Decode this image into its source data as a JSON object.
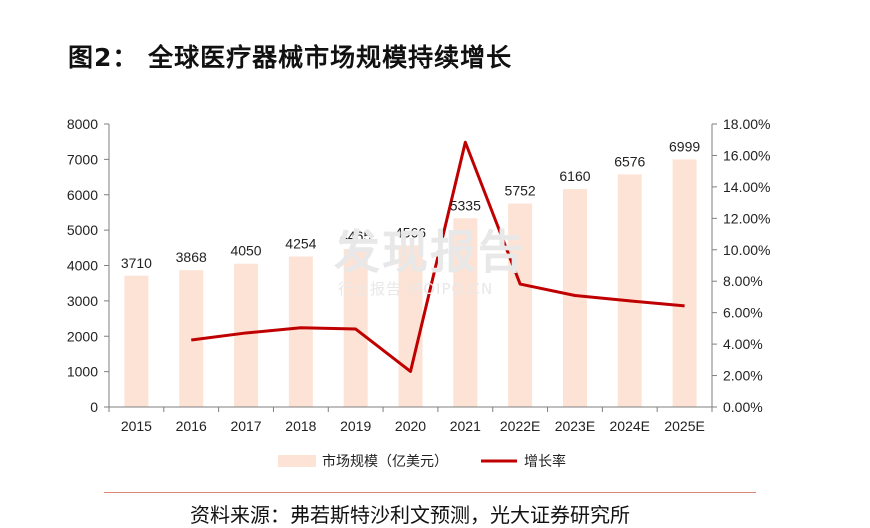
{
  "title": "图2： 全球医疗器械市场规模持续增长",
  "source": "资料来源：弗若斯特沙利文预测，光大证券研究所",
  "watermark": {
    "main": "发现报告",
    "sub": "行业报告 IPOIPO.CN"
  },
  "colors": {
    "bar": "#fde3d5",
    "line": "#c00000",
    "axis": "#7f7f7f",
    "text": "#222222"
  },
  "chart_data": {
    "type": "bar+line",
    "categories": [
      "2015",
      "2016",
      "2017",
      "2018",
      "2019",
      "2020",
      "2021",
      "2022E",
      "2023E",
      "2024E",
      "2025E"
    ],
    "series": [
      {
        "name": "市场规模（亿美元）",
        "type": "bar",
        "axis": "left",
        "values": [
          3710,
          3868,
          4050,
          4254,
          4465,
          4566,
          5335,
          5752,
          6160,
          6576,
          6999
        ]
      },
      {
        "name": "增长率",
        "type": "line",
        "axis": "right",
        "values": [
          null,
          4.26,
          4.71,
          5.04,
          4.96,
          2.26,
          16.84,
          7.82,
          7.09,
          6.75,
          6.43
        ]
      }
    ],
    "yleft": {
      "ylim": [
        0,
        8000
      ],
      "ticks": [
        "0",
        "1000",
        "2000",
        "3000",
        "4000",
        "5000",
        "6000",
        "7000",
        "8000"
      ]
    },
    "yright": {
      "ylim": [
        0,
        18
      ],
      "ticks": [
        "0.00%",
        "2.00%",
        "4.00%",
        "6.00%",
        "8.00%",
        "10.00%",
        "12.00%",
        "14.00%",
        "16.00%",
        "18.00%"
      ]
    },
    "legend": "bottom",
    "grid": false
  }
}
